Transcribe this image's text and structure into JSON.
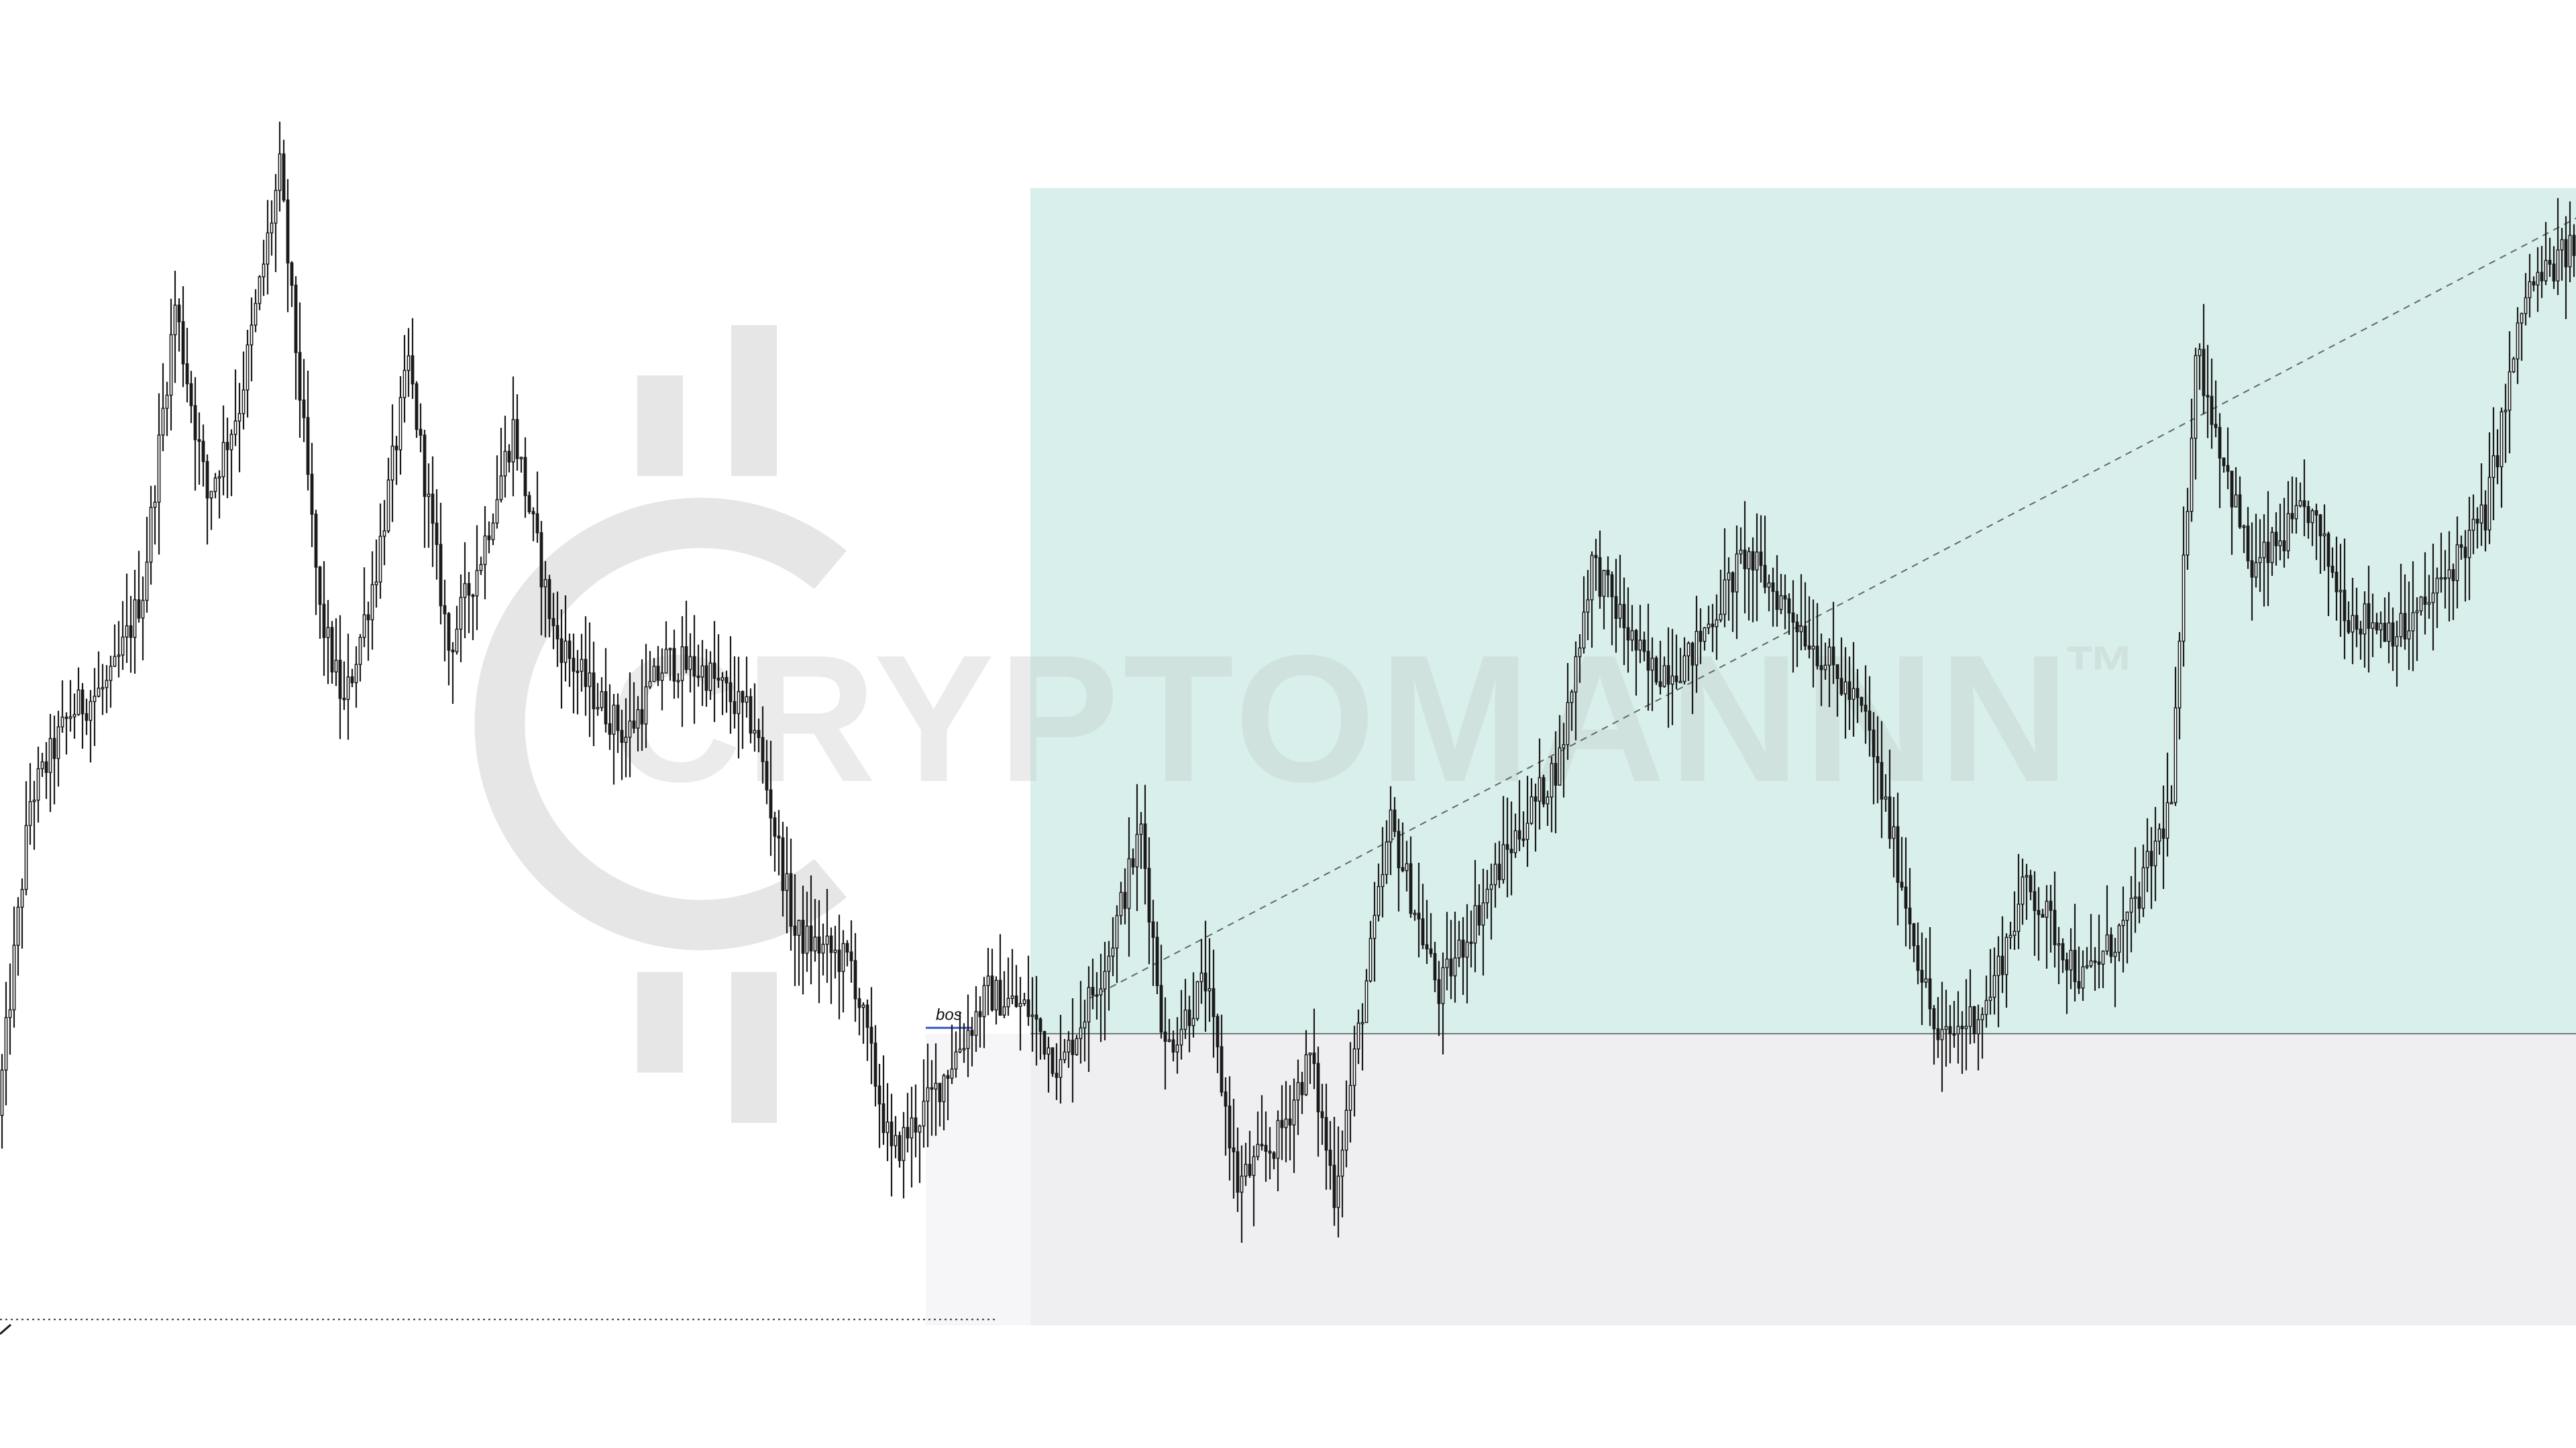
{
  "watermark": {
    "brand": "CRYPTOMANNN",
    "trademark": "™",
    "color_logo": "#e6e6e6",
    "color_text_on_white": "#ebebeb",
    "color_text_on_zone": "#cfe2dd",
    "logo_icon": "bitcoin-c-logo-icon"
  },
  "annotations": {
    "bos_label": "bos",
    "bos_color": "#3557c9",
    "bos_price": 5.1,
    "low_line_price": 0.1,
    "trendline": {
      "start": {
        "bar": 270,
        "price": 5.6
      },
      "end": {
        "bar": 640,
        "price": 19.0
      }
    }
  },
  "zones": {
    "demand_zone_color": "#d9efeb",
    "lower_range_color": "#efeff2",
    "premarket_range_color": "#f6f6f8",
    "boundary_line_color": "#6e7b7b",
    "zone_top_price": 19.5,
    "zone_boundary_price": 5.0,
    "zone_bottom_price": 0.0,
    "zone_start_bar": 256,
    "premarket_start_bar": 230
  },
  "chart_data": {
    "type": "candlestick",
    "title": "",
    "xlabel": "",
    "ylabel": "",
    "bars": 640,
    "ylim": [
      -1.0,
      21.0
    ],
    "grid": false,
    "legend": "none",
    "colors": {
      "up": "#ffffff",
      "down": "#1a1a1a",
      "outline": "#1a1a1a"
    },
    "anchors": [
      [
        0,
        3.6
      ],
      [
        8,
        9.0
      ],
      [
        18,
        10.5
      ],
      [
        28,
        11.0
      ],
      [
        36,
        12.6
      ],
      [
        44,
        17.5
      ],
      [
        52,
        14.2
      ],
      [
        60,
        15.8
      ],
      [
        70,
        19.8
      ],
      [
        80,
        12.2
      ],
      [
        86,
        10.6
      ],
      [
        94,
        13.0
      ],
      [
        102,
        16.5
      ],
      [
        112,
        11.6
      ],
      [
        120,
        13.2
      ],
      [
        128,
        15.4
      ],
      [
        138,
        11.9
      ],
      [
        146,
        11.0
      ],
      [
        156,
        10.1
      ],
      [
        166,
        11.4
      ],
      [
        176,
        11.2
      ],
      [
        188,
        10.3
      ],
      [
        198,
        6.7
      ],
      [
        212,
        6.2
      ],
      [
        222,
        2.9
      ],
      [
        232,
        3.9
      ],
      [
        246,
        5.7
      ],
      [
        256,
        5.4
      ],
      [
        264,
        4.4
      ],
      [
        276,
        6.4
      ],
      [
        284,
        8.5
      ],
      [
        290,
        4.7
      ],
      [
        300,
        5.9
      ],
      [
        308,
        2.4
      ],
      [
        318,
        3.2
      ],
      [
        326,
        4.6
      ],
      [
        332,
        2.3
      ],
      [
        346,
        8.6
      ],
      [
        358,
        5.7
      ],
      [
        374,
        8.0
      ],
      [
        388,
        9.7
      ],
      [
        396,
        13.1
      ],
      [
        410,
        11.2
      ],
      [
        420,
        11.4
      ],
      [
        434,
        13.2
      ],
      [
        446,
        12.2
      ],
      [
        464,
        10.4
      ],
      [
        482,
        4.8
      ],
      [
        494,
        5.5
      ],
      [
        504,
        7.6
      ],
      [
        518,
        5.9
      ],
      [
        530,
        7.0
      ],
      [
        540,
        9.0
      ],
      [
        546,
        16.8
      ],
      [
        560,
        12.9
      ],
      [
        574,
        14.0
      ],
      [
        584,
        12.2
      ],
      [
        598,
        11.9
      ],
      [
        606,
        12.6
      ],
      [
        612,
        13.3
      ],
      [
        618,
        13.9
      ],
      [
        628,
        17.7
      ],
      [
        640,
        18.5
      ]
    ]
  }
}
